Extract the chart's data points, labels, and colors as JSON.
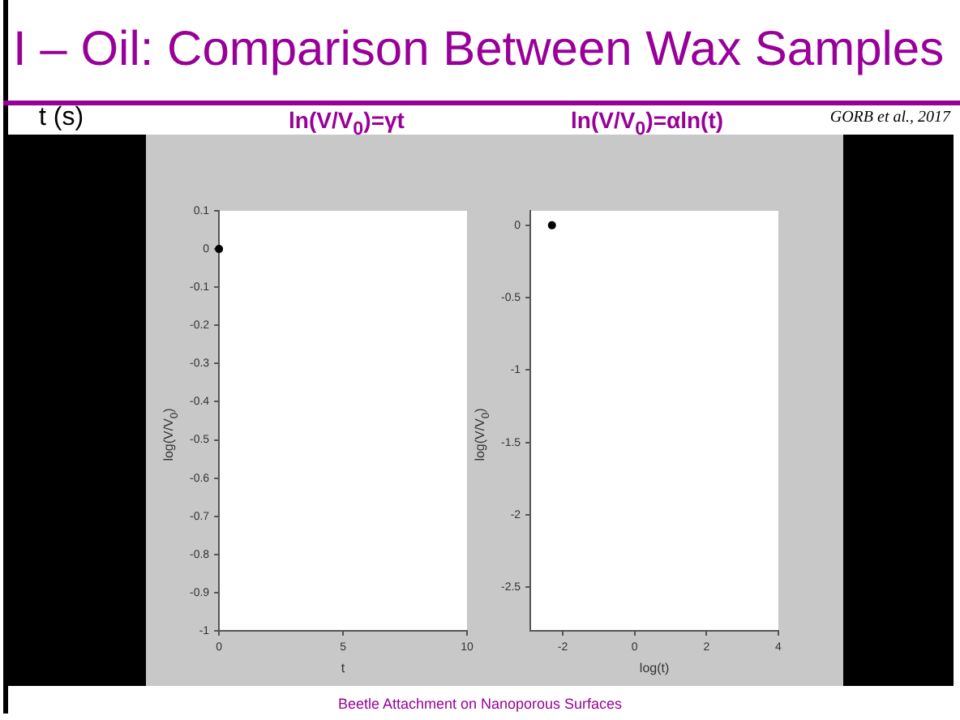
{
  "chart_data": [
    {
      "type": "other",
      "title": "I – Oil: Comparison Between Wax Samples",
      "annotations": [
        "t (s)",
        "GORB et al., 2017",
        "Beetle Attachment on Nanoporous Surfaces"
      ]
    },
    {
      "type": "scatter",
      "title": "ln(V/V$_{0}$)=γt",
      "xlabel": "t",
      "ylabel": "log(V/V$_{0}$)",
      "x": [
        0
      ],
      "values": [
        0
      ],
      "color": "#000000",
      "marker": "circle",
      "xlim": [
        0,
        10
      ],
      "xticks": [
        0,
        5,
        10
      ],
      "ylim": [
        -1,
        0.1
      ],
      "yticks": [
        0.1,
        0,
        -0.1,
        -0.2,
        -0.3,
        -0.4,
        -0.5,
        -0.6,
        -0.7,
        -0.8,
        -0.9,
        -1
      ],
      "grid": false
    },
    {
      "type": "scatter",
      "title": "ln(V/V$_{0}$)=αln(t)",
      "xlabel": "log(t)",
      "ylabel": "log(V/V$_{0}$)",
      "x": [
        -2.3
      ],
      "values": [
        0
      ],
      "color": "#000000",
      "marker": "circle",
      "xlim": [
        -2.9,
        4
      ],
      "xticks": [
        -2,
        0,
        2,
        4
      ],
      "ylim": [
        -2.8,
        0.1
      ],
      "yticks": [
        0,
        -0.5,
        -1,
        -1.5,
        -2,
        -2.5
      ],
      "grid": false
    }
  ]
}
